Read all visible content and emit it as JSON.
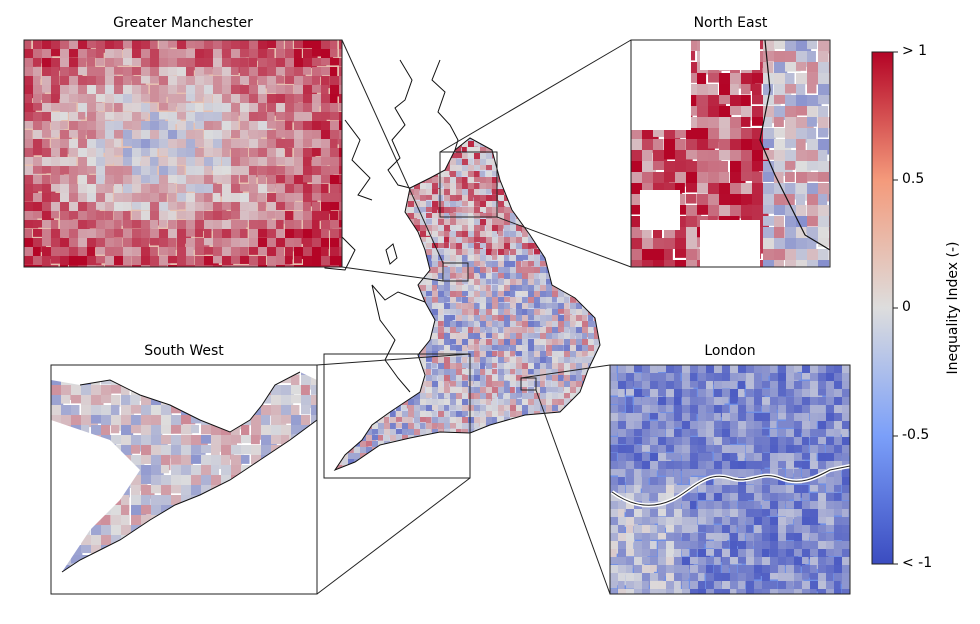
{
  "figure": {
    "insets": [
      {
        "id": "greater-manchester",
        "title": "Greater Manchester"
      },
      {
        "id": "north-east",
        "title": "North East"
      },
      {
        "id": "south-west",
        "title": "South West"
      },
      {
        "id": "london",
        "title": "London"
      }
    ]
  },
  "colorbar": {
    "label": "Inequality Index (-)",
    "ticks": [
      "> 1",
      "0.5",
      "0",
      "-0.5",
      "< -1"
    ],
    "range": [
      -1,
      1
    ],
    "colormap": "coolwarm",
    "colors": {
      "low": "#3b4cc0",
      "mid": "#dddddd",
      "high": "#b40426"
    }
  },
  "insets_tendency": {
    "greater-manchester": 0.35,
    "north-east": 0.45,
    "south-west": -0.05,
    "london": -0.55
  }
}
